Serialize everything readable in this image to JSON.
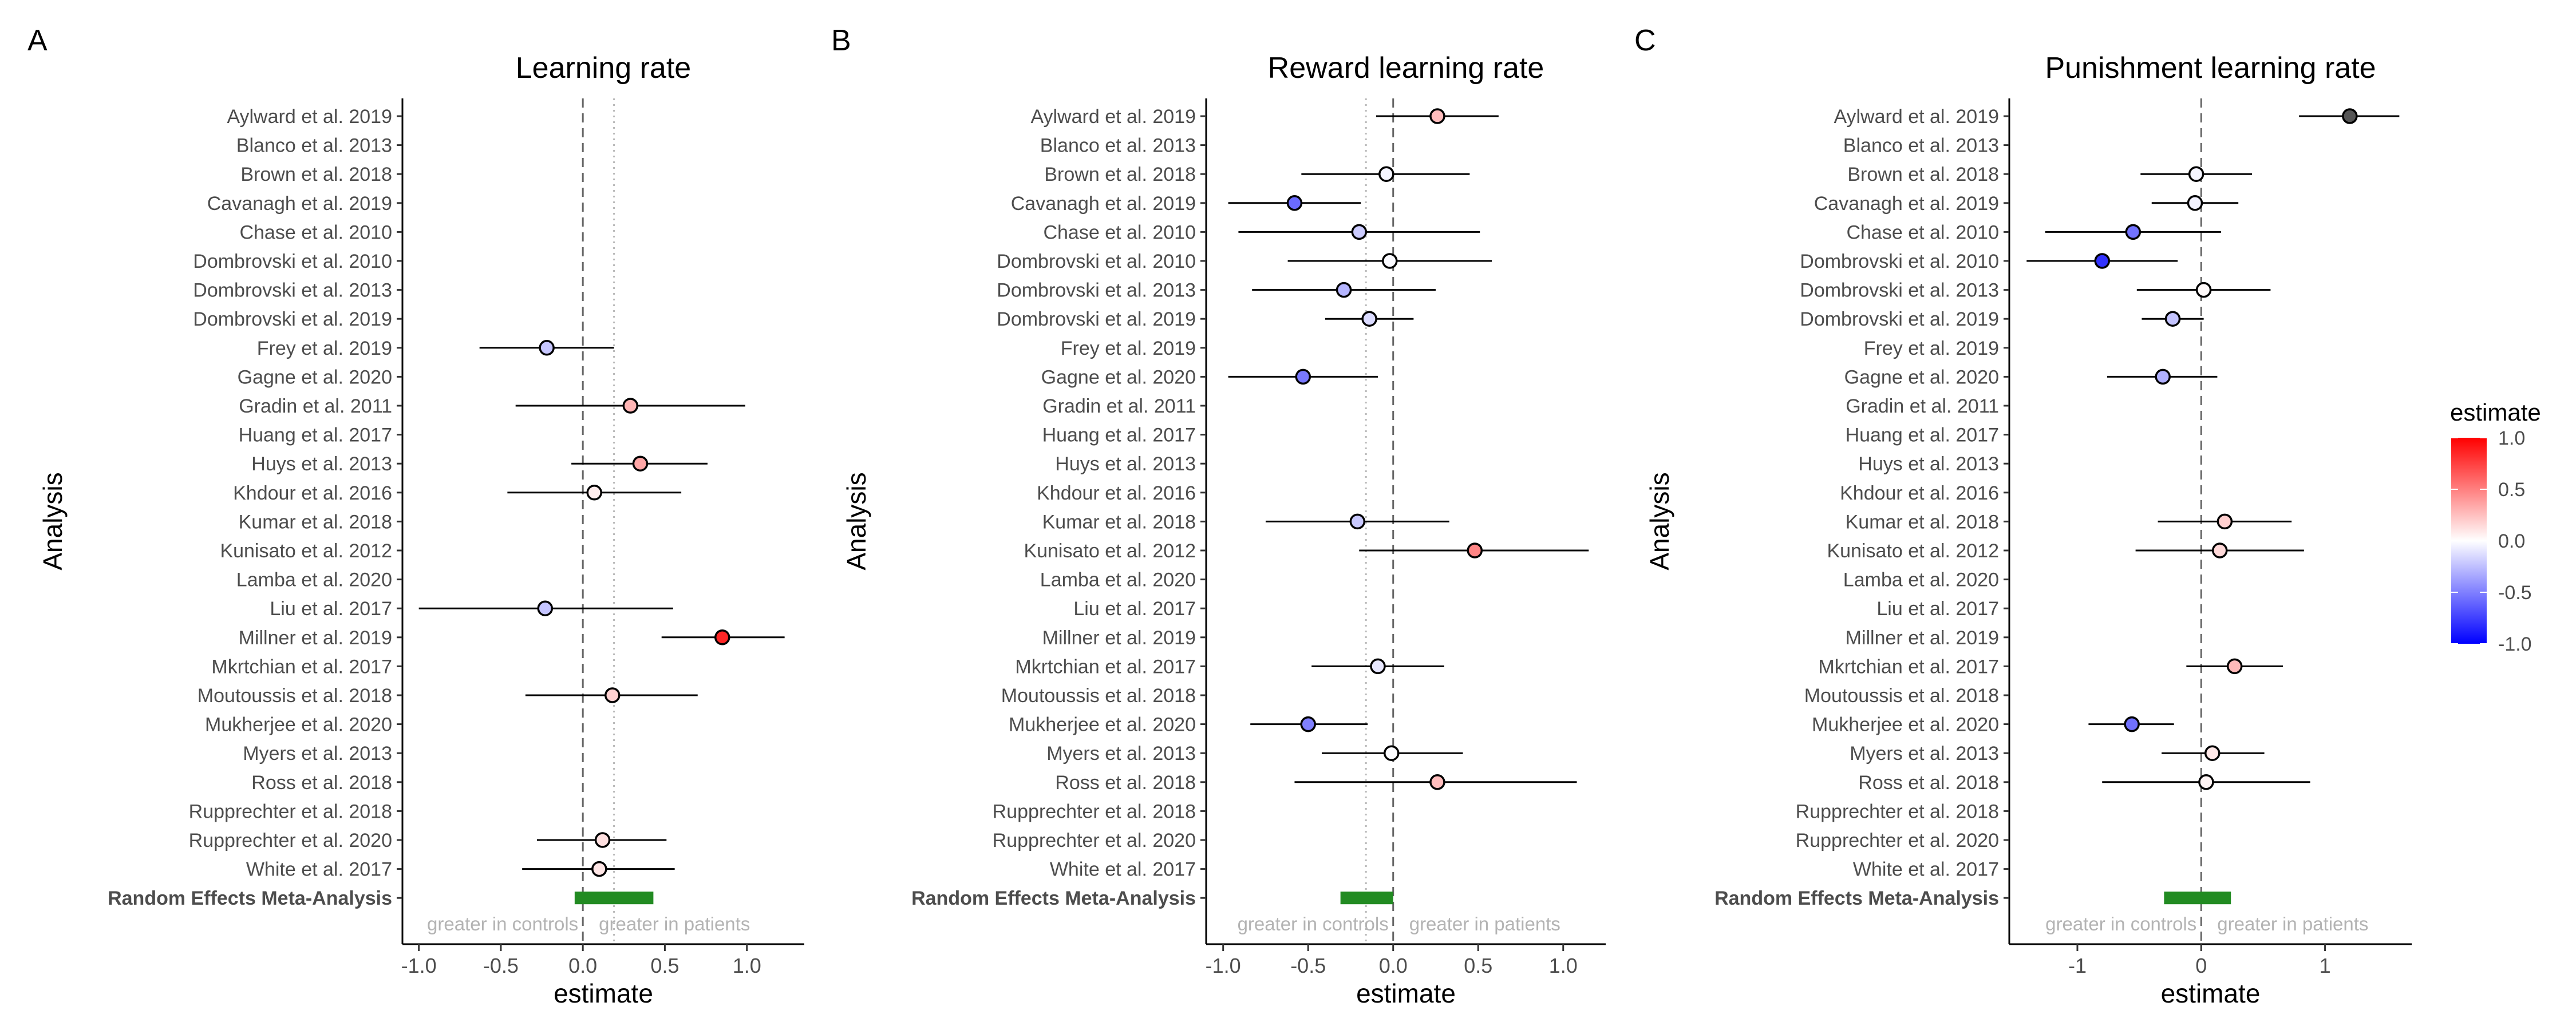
{
  "studies": [
    "Aylward et al. 2019",
    "Blanco et al. 2013",
    "Brown et al. 2018",
    "Cavanagh et al. 2019",
    "Chase et al. 2010",
    "Dombrovski et al. 2010",
    "Dombrovski et al. 2013",
    "Dombrovski et al. 2019",
    "Frey et al. 2019",
    "Gagne et al. 2020",
    "Gradin et al. 2011",
    "Huang et al. 2017",
    "Huys et al. 2013",
    "Khdour et al. 2016",
    "Kumar et al. 2018",
    "Kunisato et al. 2012",
    "Lamba et al. 2020",
    "Liu et al. 2017",
    "Millner et al. 2019",
    "Mkrtchian et al. 2017",
    "Moutoussis et al. 2018",
    "Mukherjee et al. 2020",
    "Myers et al. 2013",
    "Ross et al. 2018",
    "Rupprechter et al. 2018",
    "Rupprechter et al. 2020",
    "White et al. 2017"
  ],
  "meta_label": "Random Effects Meta-Analysis",
  "ylabel": "Analysis",
  "xlabel": "estimate",
  "annotation_left": "greater in controls",
  "annotation_right": "greater in patients",
  "meta_color": "#228B22",
  "legend": {
    "title": "estimate",
    "ticks": [
      "1.0",
      "0.5",
      "0.0",
      "-0.5",
      "-1.0"
    ],
    "tick_values": [
      1.0,
      0.5,
      0.0,
      -0.5,
      -1.0
    ],
    "color_high": "#FF0000",
    "color_mid": "#FFFFFF",
    "color_low": "#0000FF",
    "range": [
      -1.0,
      1.0
    ]
  },
  "chart_data": [
    {
      "type": "forest",
      "panel_label": "A",
      "title": "Learning rate",
      "xlim": [
        -1.1,
        1.35
      ],
      "xticks": [
        -1.0,
        -0.5,
        0.0,
        0.5,
        1.0
      ],
      "xtick_labels": [
        "-1.0",
        "-0.5",
        "0.0",
        "0.5",
        "1.0"
      ],
      "dotted_ref": 0.19,
      "meta": {
        "low": -0.05,
        "high": 0.43
      },
      "points": [
        {
          "study": "Frey et al. 2019",
          "estimate": -0.22,
          "low": -0.63,
          "high": 0.19
        },
        {
          "study": "Gradin et al. 2011",
          "estimate": 0.29,
          "low": -0.41,
          "high": 0.99
        },
        {
          "study": "Huys et al. 2013",
          "estimate": 0.35,
          "low": -0.07,
          "high": 0.76
        },
        {
          "study": "Khdour et al. 2016",
          "estimate": 0.07,
          "low": -0.46,
          "high": 0.6
        },
        {
          "study": "Liu et al. 2017",
          "estimate": -0.23,
          "low": -1.0,
          "high": 0.55
        },
        {
          "study": "Millner et al. 2019",
          "estimate": 0.85,
          "low": 0.48,
          "high": 1.23
        },
        {
          "study": "Moutoussis et al. 2018",
          "estimate": 0.18,
          "low": -0.35,
          "high": 0.7
        },
        {
          "study": "Rupprechter et al. 2020",
          "estimate": 0.12,
          "low": -0.28,
          "high": 0.51
        },
        {
          "study": "White et al. 2017",
          "estimate": 0.1,
          "low": -0.37,
          "high": 0.56
        }
      ]
    },
    {
      "type": "forest",
      "panel_label": "B",
      "title": "Reward learning rate",
      "xlim": [
        -1.1,
        1.25
      ],
      "xticks": [
        -1.0,
        -0.5,
        0.0,
        0.5,
        1.0
      ],
      "xtick_labels": [
        "-1.0",
        "-0.5",
        "0.0",
        "0.5",
        "1.0"
      ],
      "dotted_ref": -0.16,
      "meta": {
        "low": -0.31,
        "high": 0.0
      },
      "points": [
        {
          "study": "Aylward et al. 2019",
          "estimate": 0.26,
          "low": -0.1,
          "high": 0.62
        },
        {
          "study": "Brown et al. 2018",
          "estimate": -0.04,
          "low": -0.54,
          "high": 0.45
        },
        {
          "study": "Cavanagh et al. 2019",
          "estimate": -0.58,
          "low": -0.97,
          "high": -0.19
        },
        {
          "study": "Chase et al. 2010",
          "estimate": -0.2,
          "low": -0.91,
          "high": 0.51
        },
        {
          "study": "Dombrovski et al. 2010",
          "estimate": -0.02,
          "low": -0.62,
          "high": 0.58
        },
        {
          "study": "Dombrovski et al. 2013",
          "estimate": -0.29,
          "low": -0.83,
          "high": 0.25
        },
        {
          "study": "Dombrovski et al. 2019",
          "estimate": -0.14,
          "low": -0.4,
          "high": 0.12
        },
        {
          "study": "Gagne et al. 2020",
          "estimate": -0.53,
          "low": -0.97,
          "high": -0.09
        },
        {
          "study": "Kumar et al. 2018",
          "estimate": -0.21,
          "low": -0.75,
          "high": 0.33
        },
        {
          "study": "Kunisato et al. 2012",
          "estimate": 0.48,
          "low": -0.2,
          "high": 1.15
        },
        {
          "study": "Mkrtchian et al. 2017",
          "estimate": -0.09,
          "low": -0.48,
          "high": 0.3
        },
        {
          "study": "Mukherjee et al. 2020",
          "estimate": -0.5,
          "low": -0.84,
          "high": -0.15
        },
        {
          "study": "Myers et al. 2013",
          "estimate": -0.01,
          "low": -0.42,
          "high": 0.41
        },
        {
          "study": "Ross et al. 2018",
          "estimate": 0.26,
          "low": -0.58,
          "high": 1.08
        }
      ]
    },
    {
      "type": "forest",
      "panel_label": "C",
      "title": "Punishment learning rate",
      "xlim": [
        -1.55,
        1.7
      ],
      "xticks": [
        -1.0,
        0.0,
        1.0
      ],
      "xtick_labels": [
        "-1",
        "0",
        "1"
      ],
      "dotted_ref": null,
      "meta": {
        "low": -0.3,
        "high": 0.24
      },
      "points": [
        {
          "study": "Aylward et al. 2019",
          "estimate": 1.2,
          "low": 0.79,
          "high": 1.6
        },
        {
          "study": "Brown et al. 2018",
          "estimate": -0.04,
          "low": -0.49,
          "high": 0.41
        },
        {
          "study": "Cavanagh et al. 2019",
          "estimate": -0.05,
          "low": -0.4,
          "high": 0.3
        },
        {
          "study": "Chase et al. 2010",
          "estimate": -0.55,
          "low": -1.26,
          "high": 0.16
        },
        {
          "study": "Dombrovski et al. 2010",
          "estimate": -0.8,
          "low": -1.41,
          "high": -0.19
        },
        {
          "study": "Dombrovski et al. 2013",
          "estimate": 0.02,
          "low": -0.52,
          "high": 0.56
        },
        {
          "study": "Dombrovski et al. 2019",
          "estimate": -0.23,
          "low": -0.48,
          "high": 0.02
        },
        {
          "study": "Gagne et al. 2020",
          "estimate": -0.31,
          "low": -0.76,
          "high": 0.13
        },
        {
          "study": "Kumar et al. 2018",
          "estimate": 0.19,
          "low": -0.35,
          "high": 0.73
        },
        {
          "study": "Kunisato et al. 2012",
          "estimate": 0.15,
          "low": -0.53,
          "high": 0.83
        },
        {
          "study": "Mkrtchian et al. 2017",
          "estimate": 0.27,
          "low": -0.12,
          "high": 0.66
        },
        {
          "study": "Mukherjee et al. 2020",
          "estimate": -0.56,
          "low": -0.91,
          "high": -0.22
        },
        {
          "study": "Myers et al. 2013",
          "estimate": 0.09,
          "low": -0.32,
          "high": 0.51
        },
        {
          "study": "Ross et al. 2018",
          "estimate": 0.04,
          "low": -0.8,
          "high": 0.88
        }
      ]
    }
  ]
}
